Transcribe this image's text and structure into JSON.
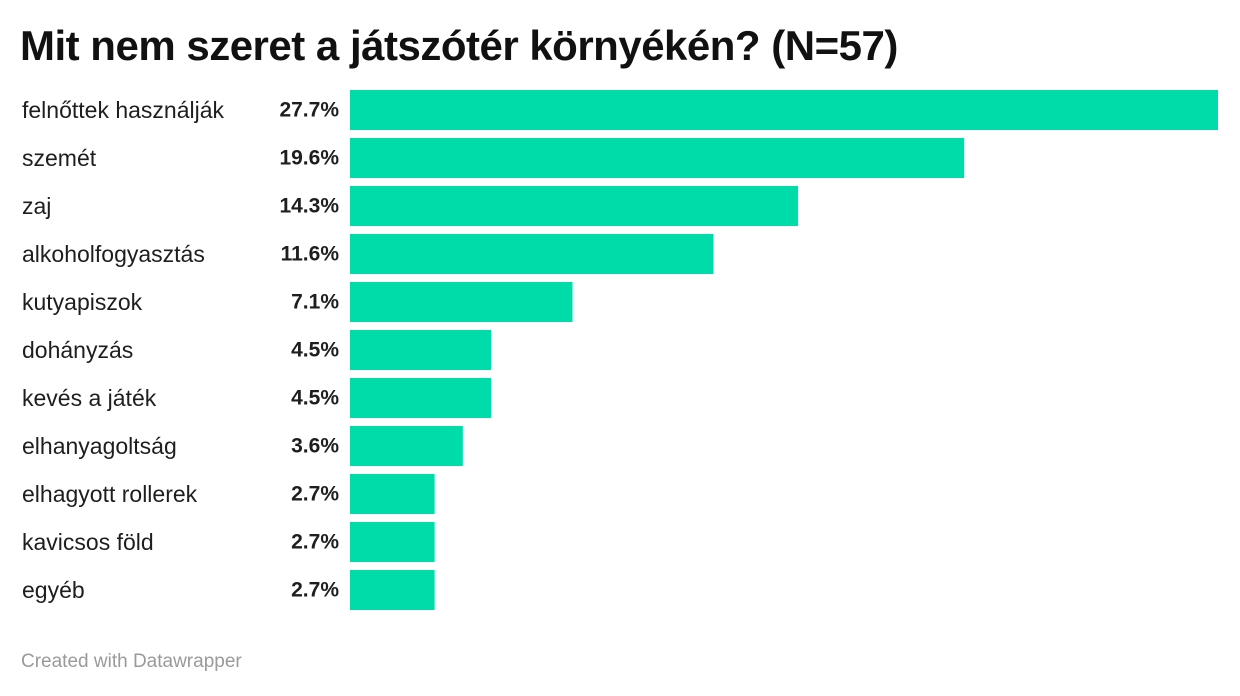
{
  "chart_data": {
    "type": "bar",
    "orientation": "horizontal",
    "title": "Mit nem szeret a játszótér környékén? (N=57)",
    "categories": [
      "felnőttek használják",
      "szemét",
      "zaj",
      "alkoholfogyasztás",
      "kutyapiszok",
      "dohányzás",
      "kevés a játék",
      "elhanyagoltság",
      "elhagyott rollerek",
      "kavicsos föld",
      "egyéb"
    ],
    "values": [
      27.7,
      19.6,
      14.3,
      11.6,
      7.1,
      4.5,
      4.5,
      3.6,
      2.7,
      2.7,
      2.7
    ],
    "value_labels": [
      "27.7%",
      "19.6%",
      "14.3%",
      "11.6%",
      "7.1%",
      "4.5%",
      "4.5%",
      "3.6%",
      "2.7%",
      "2.7%",
      "2.7%"
    ],
    "xlim": [
      0,
      27.7
    ],
    "bar_color": "#00dca9",
    "grid": false
  },
  "footer": {
    "credit": "Created with Datawrapper"
  }
}
